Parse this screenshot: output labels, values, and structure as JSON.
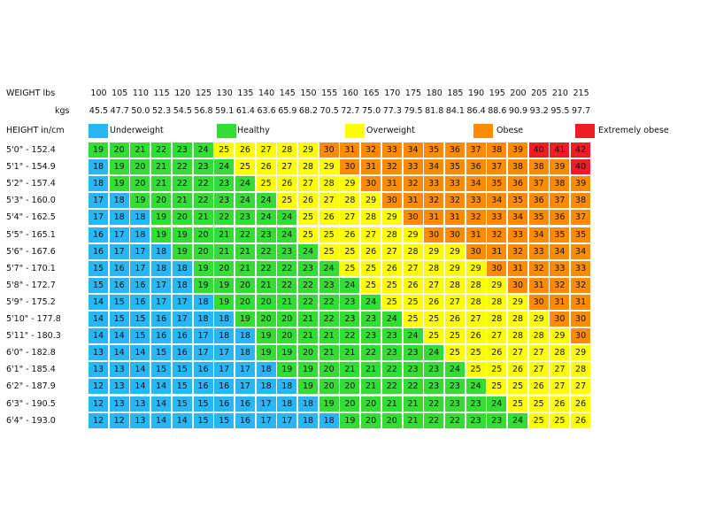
{
  "chart_data": {
    "type": "table",
    "title": "",
    "header_weight_lbs": "WEIGHT lbs",
    "header_weight_kgs": "kgs",
    "header_height": "HEIGHT in/cm",
    "weights_lbs": [
      "100",
      "105",
      "110",
      "115",
      "120",
      "125",
      "130",
      "135",
      "140",
      "145",
      "150",
      "155",
      "160",
      "165",
      "170",
      "175",
      "180",
      "185",
      "190",
      "195",
      "200",
      "205",
      "210",
      "215"
    ],
    "weights_kgs": [
      "45.5",
      "47.7",
      "50.0",
      "52.3",
      "54.5",
      "56.8",
      "59.1",
      "61.4",
      "63.6",
      "65.9",
      "68.2",
      "70.5",
      "72.7",
      "75.0",
      "77.3",
      "79.5",
      "81.8",
      "84.1",
      "86.4",
      "88.6",
      "90.9",
      "93.2",
      "95.5",
      "97.7"
    ],
    "heights": [
      "5'0\" - 152.4",
      "5'1\" - 154.9",
      "5'2\" - 157.4",
      "5'3\" - 160.0",
      "5'4\" - 162.5",
      "5'5\" - 165.1",
      "5'6\" - 167.6",
      "5'7\" - 170.1",
      "5'8\" - 172.7",
      "5'9\" - 175.2",
      "5'10\" - 177.8",
      "5'11\" - 180.3",
      "6'0\" - 182.8",
      "6'1\" - 185.4",
      "6'2\" - 187.9",
      "6'3\" - 190.5",
      "6'4\" - 193.0"
    ],
    "categories": [
      {
        "name": "Underweight",
        "color": "#29b6f6",
        "max": 18
      },
      {
        "name": "Healthy",
        "color": "#33dd33",
        "max": 24
      },
      {
        "name": "Overweight",
        "color": "#ffff00",
        "max": 29
      },
      {
        "name": "Obese",
        "color": "#ff8c00",
        "max": 39
      },
      {
        "name": "Extremely obese",
        "color": "#ee1c24",
        "max": 100
      }
    ],
    "bmi": [
      [
        19,
        20,
        21,
        22,
        23,
        24,
        25,
        26,
        27,
        28,
        29,
        30,
        31,
        32,
        33,
        34,
        35,
        36,
        37,
        38,
        39,
        40,
        41,
        42
      ],
      [
        18,
        19,
        20,
        21,
        22,
        23,
        24,
        25,
        26,
        27,
        28,
        29,
        30,
        31,
        32,
        33,
        34,
        35,
        36,
        37,
        38,
        38,
        39,
        40
      ],
      [
        18,
        19,
        20,
        21,
        22,
        22,
        23,
        24,
        25,
        26,
        27,
        28,
        29,
        30,
        31,
        32,
        33,
        33,
        34,
        35,
        36,
        37,
        38,
        39
      ],
      [
        17,
        18,
        19,
        20,
        21,
        22,
        23,
        24,
        24,
        25,
        26,
        27,
        28,
        29,
        30,
        31,
        32,
        32,
        33,
        34,
        35,
        36,
        37,
        38
      ],
      [
        17,
        18,
        18,
        19,
        20,
        21,
        22,
        23,
        24,
        24,
        25,
        26,
        27,
        28,
        29,
        30,
        31,
        31,
        32,
        33,
        34,
        35,
        36,
        37
      ],
      [
        16,
        17,
        18,
        19,
        19,
        20,
        21,
        22,
        23,
        24,
        25,
        25,
        26,
        27,
        28,
        29,
        30,
        30,
        31,
        32,
        33,
        34,
        35,
        35
      ],
      [
        16,
        17,
        17,
        18,
        19,
        20,
        21,
        21,
        22,
        23,
        24,
        25,
        25,
        26,
        27,
        28,
        29,
        29,
        30,
        31,
        32,
        33,
        34,
        34
      ],
      [
        15,
        16,
        17,
        18,
        18,
        19,
        20,
        21,
        22,
        22,
        23,
        24,
        25,
        25,
        26,
        27,
        28,
        29,
        29,
        30,
        31,
        32,
        33,
        33
      ],
      [
        15,
        16,
        16,
        17,
        18,
        19,
        19,
        20,
        21,
        22,
        22,
        23,
        24,
        25,
        25,
        26,
        27,
        28,
        28,
        29,
        30,
        31,
        32,
        32
      ],
      [
        14,
        15,
        16,
        17,
        17,
        18,
        19,
        20,
        20,
        21,
        22,
        22,
        23,
        24,
        25,
        25,
        26,
        27,
        28,
        28,
        29,
        30,
        31,
        31
      ],
      [
        14,
        15,
        15,
        16,
        17,
        18,
        18,
        19,
        20,
        20,
        21,
        22,
        23,
        23,
        24,
        25,
        25,
        26,
        27,
        28,
        28,
        29,
        30,
        30
      ],
      [
        14,
        14,
        15,
        16,
        16,
        17,
        18,
        18,
        19,
        20,
        21,
        21,
        22,
        23,
        23,
        24,
        25,
        25,
        26,
        27,
        28,
        28,
        29,
        30
      ],
      [
        13,
        14,
        14,
        15,
        16,
        17,
        17,
        18,
        19,
        19,
        20,
        21,
        21,
        22,
        23,
        23,
        24,
        25,
        25,
        26,
        27,
        27,
        28,
        29
      ],
      [
        13,
        13,
        14,
        15,
        15,
        16,
        17,
        17,
        18,
        19,
        19,
        20,
        21,
        21,
        22,
        23,
        23,
        24,
        25,
        25,
        26,
        27,
        27,
        28
      ],
      [
        12,
        13,
        14,
        14,
        15,
        16,
        16,
        17,
        18,
        18,
        19,
        20,
        20,
        21,
        22,
        22,
        23,
        23,
        24,
        25,
        25,
        26,
        27,
        27
      ],
      [
        12,
        13,
        13,
        14,
        15,
        15,
        16,
        16,
        17,
        18,
        18,
        19,
        20,
        20,
        21,
        21,
        22,
        23,
        23,
        24,
        25,
        25,
        26,
        26
      ],
      [
        12,
        12,
        13,
        14,
        14,
        15,
        15,
        16,
        17,
        17,
        18,
        18,
        19,
        20,
        20,
        21,
        22,
        22,
        23,
        23,
        24,
        25,
        25,
        26
      ]
    ]
  }
}
